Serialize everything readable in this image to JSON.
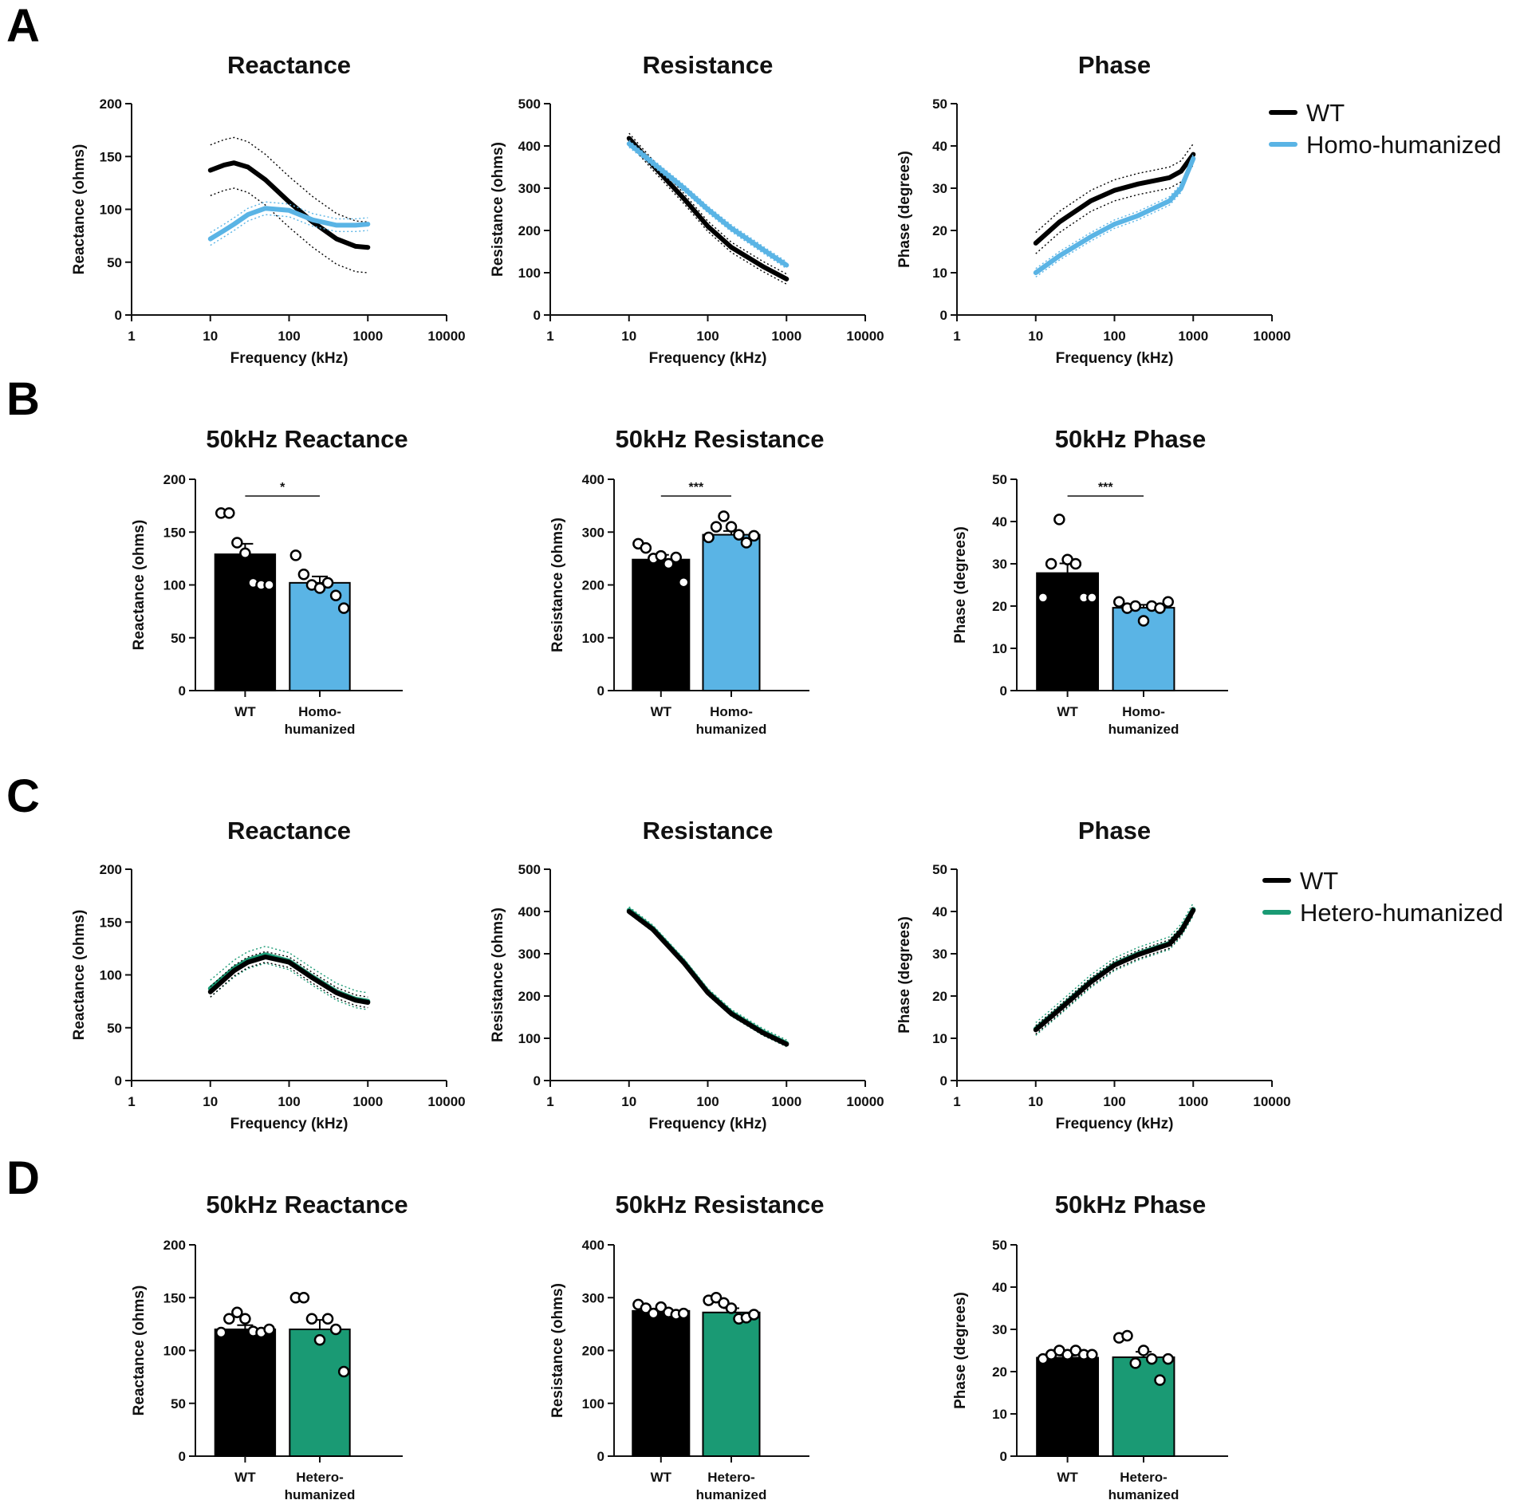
{
  "panel_labels": [
    "A",
    "B",
    "C",
    "D"
  ],
  "colors": {
    "wt": "#000000",
    "homo": "#5ab4e5",
    "hetero": "#1a9a74"
  },
  "legends": {
    "A": [
      {
        "label": "WT",
        "color": "#000000"
      },
      {
        "label": "Homo-humanized",
        "color": "#5ab4e5"
      }
    ],
    "C": [
      {
        "label": "WT",
        "color": "#000000"
      },
      {
        "label": "Hetero-humanized",
        "color": "#1a9a74"
      }
    ]
  },
  "chart_data": [
    {
      "id": "A1",
      "panel": "A",
      "type": "line",
      "title": "Reactance",
      "xlabel": "Frequency (kHz)",
      "ylabel": "Reactance (ohms)",
      "xscale": "log",
      "xlim": [
        1,
        10000
      ],
      "xticks": [
        "1",
        "10",
        "100",
        "1000",
        "10000"
      ],
      "ylim": [
        0,
        200
      ],
      "yticks": [
        "0",
        "50",
        "100",
        "150",
        "200"
      ],
      "series": [
        {
          "name": "WT",
          "color": "#000000",
          "x": [
            10,
            15,
            20,
            30,
            50,
            100,
            200,
            400,
            700,
            1000
          ],
          "y": [
            137,
            142,
            144,
            140,
            128,
            107,
            88,
            72,
            65,
            64
          ],
          "ci": 24
        },
        {
          "name": "Homo-humanized",
          "color": "#5ab4e5",
          "x": [
            10,
            15,
            20,
            30,
            50,
            100,
            200,
            400,
            700,
            1000
          ],
          "y": [
            72,
            80,
            86,
            95,
            101,
            99,
            90,
            85,
            85,
            86
          ],
          "ci": 6
        }
      ]
    },
    {
      "id": "A2",
      "panel": "A",
      "type": "line",
      "title": "Resistance",
      "xlabel": "Frequency (kHz)",
      "ylabel": "Resistance (ohms)",
      "xscale": "log",
      "xlim": [
        1,
        10000
      ],
      "xticks": [
        "1",
        "10",
        "100",
        "1000",
        "10000"
      ],
      "ylim": [
        0,
        500
      ],
      "yticks": [
        "0",
        "100",
        "200",
        "300",
        "400",
        "500"
      ],
      "series": [
        {
          "name": "WT",
          "color": "#000000",
          "x": [
            10,
            20,
            50,
            100,
            200,
            500,
            1000
          ],
          "y": [
            418,
            355,
            275,
            210,
            160,
            115,
            85
          ],
          "ci": 12
        },
        {
          "name": "Homo-humanized",
          "color": "#5ab4e5",
          "x": [
            10,
            20,
            50,
            100,
            200,
            500,
            1000
          ],
          "y": [
            405,
            360,
            300,
            250,
            205,
            155,
            118
          ],
          "ci": 8
        }
      ]
    },
    {
      "id": "A3",
      "panel": "A",
      "type": "line",
      "title": "Phase",
      "xlabel": "Frequency (kHz)",
      "ylabel": "Phase (degrees)",
      "xscale": "log",
      "xlim": [
        1,
        10000
      ],
      "xticks": [
        "1",
        "10",
        "100",
        "1000",
        "10000"
      ],
      "ylim": [
        0,
        50
      ],
      "yticks": [
        "0",
        "10",
        "20",
        "30",
        "40",
        "50"
      ],
      "series": [
        {
          "name": "WT",
          "color": "#000000",
          "x": [
            10,
            20,
            50,
            100,
            200,
            500,
            700,
            1000
          ],
          "y": [
            17,
            22,
            27,
            29.5,
            31,
            32.5,
            34,
            38
          ],
          "ci": 2.5
        },
        {
          "name": "Homo-humanized",
          "color": "#5ab4e5",
          "x": [
            10,
            20,
            50,
            100,
            200,
            500,
            700,
            1000
          ],
          "y": [
            10,
            14,
            18.5,
            21.5,
            23.5,
            27,
            30,
            37
          ],
          "ci": 1
        }
      ]
    },
    {
      "id": "B1",
      "panel": "B",
      "type": "bar",
      "title": "50kHz Reactance",
      "ylabel": "Reactance (ohms)",
      "ylim": [
        0,
        200
      ],
      "yticks": [
        "0",
        "50",
        "100",
        "150",
        "200"
      ],
      "categories": [
        "WT",
        "Homo-\nhumanized"
      ],
      "values": [
        129,
        102
      ],
      "sem": [
        10,
        6
      ],
      "colors": [
        "#000000",
        "#5ab4e5"
      ],
      "points": [
        [
          168,
          168,
          140,
          130,
          102,
          100,
          100
        ],
        [
          128,
          110,
          100,
          97,
          102,
          90,
          78
        ]
      ],
      "significance": "*"
    },
    {
      "id": "B2",
      "panel": "B",
      "type": "bar",
      "title": "50kHz Resistance",
      "ylabel": "Resistance (ohms)",
      "ylim": [
        0,
        400
      ],
      "yticks": [
        "0",
        "100",
        "200",
        "300",
        "400"
      ],
      "categories": [
        "WT",
        "Homo-\nhumanized"
      ],
      "values": [
        248,
        295
      ],
      "sem": [
        9,
        7
      ],
      "colors": [
        "#000000",
        "#5ab4e5"
      ],
      "points": [
        [
          278,
          270,
          250,
          255,
          240,
          252,
          205
        ],
        [
          290,
          310,
          330,
          310,
          295,
          280,
          293
        ]
      ],
      "significance": "***"
    },
    {
      "id": "B3",
      "panel": "B",
      "type": "bar",
      "title": "50kHz Phase",
      "ylabel": "Phase (degrees)",
      "ylim": [
        0,
        50
      ],
      "yticks": [
        "0",
        "10",
        "20",
        "30",
        "40",
        "50"
      ],
      "categories": [
        "WT",
        "Homo-\nhumanized"
      ],
      "values": [
        27.8,
        19.6
      ],
      "sem": [
        2.3,
        0.7
      ],
      "colors": [
        "#000000",
        "#5ab4e5"
      ],
      "points": [
        [
          22,
          30,
          40.5,
          31,
          30,
          22,
          22
        ],
        [
          21,
          19.5,
          20,
          16.5,
          20,
          19.5,
          21
        ]
      ],
      "significance": "***"
    },
    {
      "id": "C1",
      "panel": "C",
      "type": "line",
      "title": "Reactance",
      "xlabel": "Frequency (kHz)",
      "ylabel": "Reactance (ohms)",
      "xscale": "log",
      "xlim": [
        1,
        10000
      ],
      "xticks": [
        "1",
        "10",
        "100",
        "1000",
        "10000"
      ],
      "ylim": [
        0,
        200
      ],
      "yticks": [
        "0",
        "50",
        "100",
        "150",
        "200"
      ],
      "series": [
        {
          "name": "Hetero-humanized",
          "color": "#1a9a74",
          "x": [
            10,
            20,
            30,
            50,
            100,
            200,
            400,
            700,
            1000
          ],
          "y": [
            87,
            106,
            114,
            119,
            113,
            98,
            84,
            77,
            75
          ],
          "ci": 8
        },
        {
          "name": "WT",
          "color": "#000000",
          "x": [
            10,
            20,
            30,
            50,
            100,
            200,
            400,
            700,
            1000
          ],
          "y": [
            84,
            104,
            112,
            117,
            112,
            97,
            83,
            76,
            74
          ],
          "ci": 5
        }
      ]
    },
    {
      "id": "C2",
      "panel": "C",
      "type": "line",
      "title": "Resistance",
      "xlabel": "Frequency (kHz)",
      "ylabel": "Resistance (ohms)",
      "xscale": "log",
      "xlim": [
        1,
        10000
      ],
      "xticks": [
        "1",
        "10",
        "100",
        "1000",
        "10000"
      ],
      "ylim": [
        0,
        500
      ],
      "yticks": [
        "0",
        "100",
        "200",
        "300",
        "400",
        "500"
      ],
      "series": [
        {
          "name": "Hetero-humanized",
          "color": "#1a9a74",
          "x": [
            10,
            20,
            50,
            100,
            200,
            500,
            1000
          ],
          "y": [
            403,
            360,
            280,
            210,
            160,
            115,
            88
          ],
          "ci": 8
        },
        {
          "name": "WT",
          "color": "#000000",
          "x": [
            10,
            20,
            50,
            100,
            200,
            500,
            1000
          ],
          "y": [
            400,
            358,
            278,
            208,
            158,
            113,
            86
          ],
          "ci": 5
        }
      ]
    },
    {
      "id": "C3",
      "panel": "C",
      "type": "line",
      "title": "Phase",
      "xlabel": "Frequency (kHz)",
      "ylabel": "Phase (degrees)",
      "xscale": "log",
      "xlim": [
        1,
        10000
      ],
      "xticks": [
        "1",
        "10",
        "100",
        "1000",
        "10000"
      ],
      "ylim": [
        0,
        50
      ],
      "yticks": [
        "0",
        "10",
        "20",
        "30",
        "40",
        "50"
      ],
      "series": [
        {
          "name": "Hetero-humanized",
          "color": "#1a9a74",
          "x": [
            10,
            20,
            50,
            100,
            200,
            500,
            700,
            1000
          ],
          "y": [
            12.2,
            17,
            23.5,
            27.5,
            30,
            32.5,
            35.5,
            40.5
          ],
          "ci": 1.5
        },
        {
          "name": "WT",
          "color": "#000000",
          "x": [
            10,
            20,
            50,
            100,
            200,
            500,
            700,
            1000
          ],
          "y": [
            12,
            16.8,
            23.3,
            27.3,
            29.8,
            32.3,
            35.3,
            40.3
          ],
          "ci": 1
        }
      ]
    },
    {
      "id": "D1",
      "panel": "D",
      "type": "bar",
      "title": "50kHz Reactance",
      "ylabel": "Reactance (ohms)",
      "ylim": [
        0,
        200
      ],
      "yticks": [
        "0",
        "50",
        "100",
        "150",
        "200"
      ],
      "categories": [
        "WT",
        "Hetero-\nhumanized"
      ],
      "values": [
        120,
        120
      ],
      "sem": [
        4,
        9
      ],
      "colors": [
        "#000000",
        "#1a9a74"
      ],
      "points": [
        [
          117,
          130,
          136,
          130,
          118,
          117,
          120
        ],
        [
          150,
          150,
          130,
          110,
          130,
          120,
          80
        ]
      ],
      "significance": ""
    },
    {
      "id": "D2",
      "panel": "D",
      "type": "bar",
      "title": "50kHz Resistance",
      "ylabel": "Resistance (ohms)",
      "ylim": [
        0,
        400
      ],
      "yticks": [
        "0",
        "100",
        "200",
        "300",
        "400"
      ],
      "categories": [
        "WT",
        "Hetero-\nhumanized"
      ],
      "values": [
        275,
        272
      ],
      "sem": [
        4,
        8
      ],
      "colors": [
        "#000000",
        "#1a9a74"
      ],
      "points": [
        [
          287,
          280,
          270,
          282,
          272,
          268,
          270
        ],
        [
          295,
          300,
          290,
          280,
          260,
          262,
          268
        ]
      ],
      "significance": ""
    },
    {
      "id": "D3",
      "panel": "D",
      "type": "bar",
      "title": "50kHz Phase",
      "ylabel": "Phase (degrees)",
      "ylim": [
        0,
        50
      ],
      "yticks": [
        "0",
        "10",
        "20",
        "30",
        "40",
        "50"
      ],
      "categories": [
        "WT",
        "Hetero-\nhumanized"
      ],
      "values": [
        23.3,
        23.4
      ],
      "sem": [
        0.5,
        1.3
      ],
      "colors": [
        "#000000",
        "#1a9a74"
      ],
      "points": [
        [
          23,
          24,
          25,
          24,
          25,
          24,
          24
        ],
        [
          28,
          28.5,
          22,
          25,
          23,
          18,
          23
        ]
      ],
      "significance": ""
    }
  ]
}
